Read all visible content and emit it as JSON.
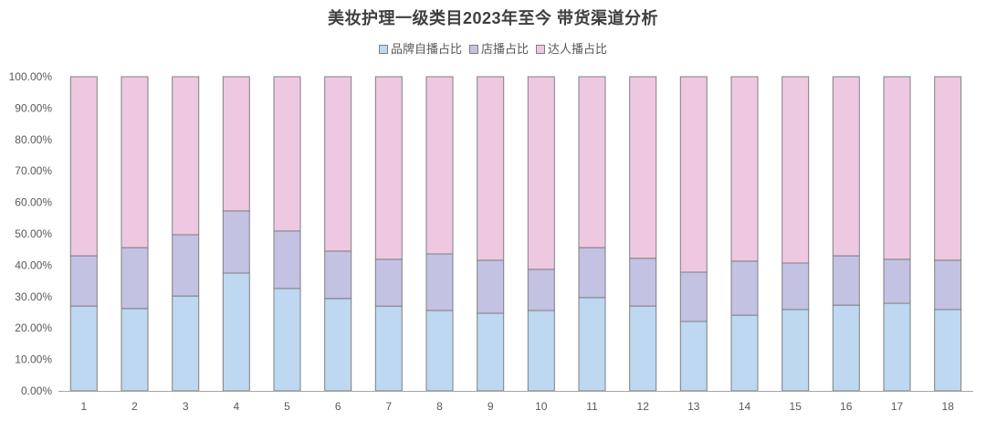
{
  "chart_data": {
    "type": "bar",
    "stacked": true,
    "title": "美妆护理一级类目2023年至今 带货渠道分析",
    "categories": [
      "1",
      "2",
      "3",
      "4",
      "5",
      "6",
      "7",
      "8",
      "9",
      "10",
      "11",
      "12",
      "13",
      "14",
      "15",
      "16",
      "17",
      "18"
    ],
    "series": [
      {
        "name": "品牌自播占比",
        "color": "#BDD8F0",
        "values": [
          27.0,
          26.2,
          30.2,
          37.5,
          32.6,
          29.4,
          27.0,
          25.6,
          24.7,
          25.6,
          29.7,
          27.0,
          22.1,
          24.1,
          25.9,
          27.3,
          27.9,
          25.9
        ]
      },
      {
        "name": "店播占比",
        "color": "#C3C2E3",
        "values": [
          16.0,
          19.4,
          19.5,
          19.8,
          18.3,
          15.1,
          14.9,
          18.0,
          16.9,
          13.1,
          15.9,
          15.2,
          15.7,
          17.2,
          14.8,
          15.7,
          14.0,
          15.7
        ]
      },
      {
        "name": "达人播占比",
        "color": "#EEC8E1",
        "values": [
          57.0,
          54.4,
          50.3,
          42.7,
          49.1,
          55.5,
          58.1,
          56.4,
          58.4,
          61.3,
          54.4,
          57.8,
          62.2,
          58.7,
          59.3,
          57.0,
          58.1,
          58.4
        ]
      }
    ],
    "ylim": [
      0,
      100
    ],
    "yticks": [
      "0.00%",
      "10.00%",
      "20.00%",
      "30.00%",
      "40.00%",
      "50.00%",
      "60.00%",
      "70.00%",
      "80.00%",
      "90.00%",
      "100.00%"
    ],
    "xlabel": "",
    "ylabel": "",
    "grid": false,
    "legend_position": "top"
  },
  "colors": {
    "bar_outline": "#7F7F7F",
    "axis": "#A6A6A6"
  }
}
